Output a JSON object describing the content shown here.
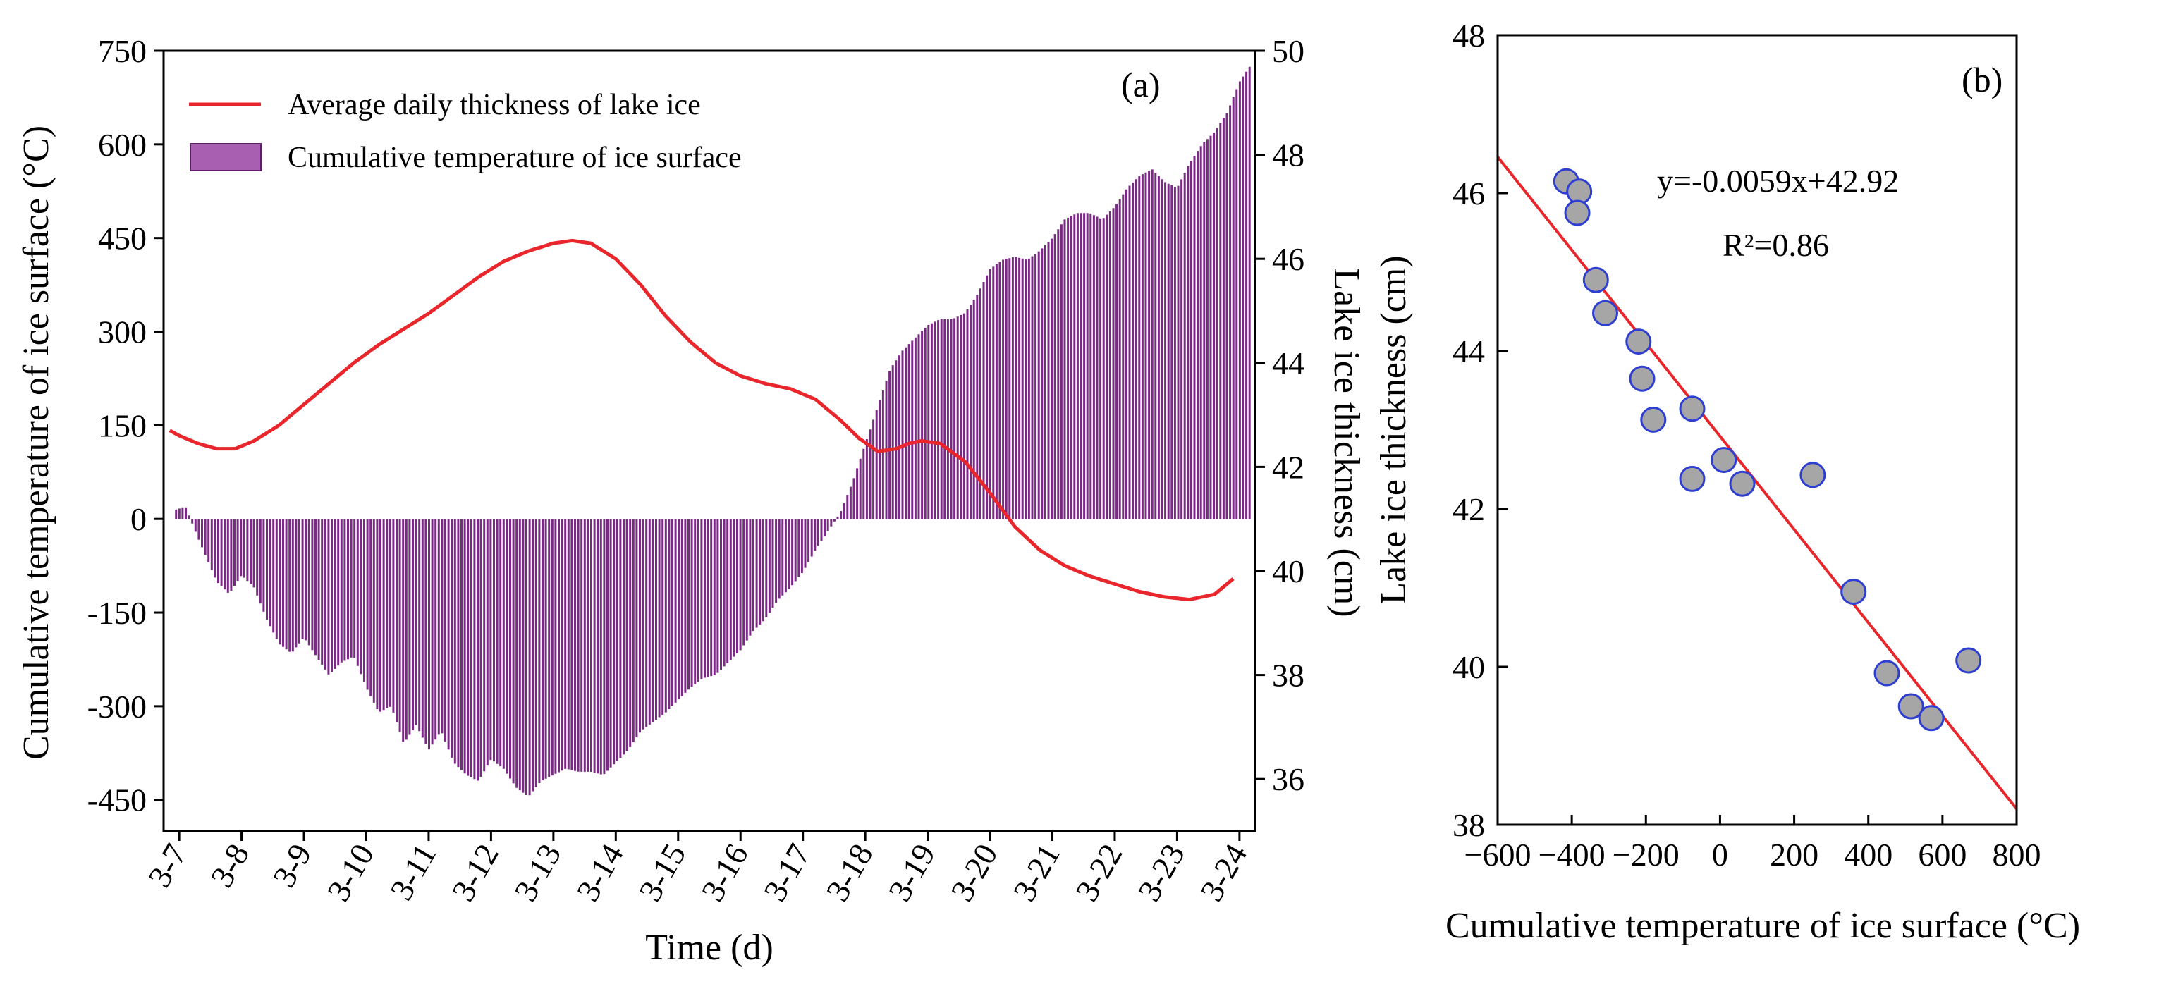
{
  "chart_data": [
    {
      "type": "bar+line",
      "panel_label": "(a)",
      "xlabel": "Time (d)",
      "ylabel_left": "Cumulative temperature of ice surface (°C)",
      "ylabel_right": "Lake ice thickness (cm)",
      "x_tick_labels": [
        "3-7",
        "3-8",
        "3-9",
        "3-10",
        "3-11",
        "3-12",
        "3-13",
        "3-14",
        "3-15",
        "3-16",
        "3-17",
        "3-18",
        "3-19",
        "3-20",
        "3-21",
        "3-22",
        "3-23",
        "3-24"
      ],
      "xlim": [
        6.75,
        24.25
      ],
      "ylim_left": [
        -500,
        750
      ],
      "yticks_left": [
        -450,
        -300,
        -150,
        0,
        150,
        300,
        450,
        600,
        750
      ],
      "ylim_right": [
        35,
        50
      ],
      "yticks_right": [
        36,
        38,
        40,
        42,
        44,
        46,
        48,
        50
      ],
      "legend": {
        "position": "top-left",
        "line_label": "Average daily thickness of lake ice",
        "bar_label": "Cumulative temperature of ice surface"
      },
      "colors": {
        "line": "#e8262b",
        "bar": "#7a2a85",
        "legend_bar": "#a85fb2"
      },
      "series_line": {
        "name": "Average daily thickness of lake ice",
        "x": [
          6.85,
          7.0,
          7.3,
          7.6,
          7.9,
          8.2,
          8.6,
          9.0,
          9.4,
          9.8,
          10.2,
          10.6,
          11.0,
          11.4,
          11.8,
          12.2,
          12.6,
          13.0,
          13.3,
          13.6,
          14.0,
          14.4,
          14.8,
          15.2,
          15.6,
          16.0,
          16.4,
          16.8,
          17.2,
          17.6,
          17.9,
          18.2,
          18.5,
          18.7,
          18.9,
          19.2,
          19.6,
          20.0,
          20.4,
          20.8,
          21.2,
          21.6,
          22.0,
          22.4,
          22.8,
          23.2,
          23.6,
          23.9
        ],
        "values": [
          42.7,
          42.6,
          42.45,
          42.35,
          42.35,
          42.5,
          42.8,
          43.2,
          43.6,
          44.0,
          44.35,
          44.65,
          44.95,
          45.3,
          45.65,
          45.95,
          46.15,
          46.3,
          46.35,
          46.3,
          46.0,
          45.5,
          44.9,
          44.4,
          44.0,
          43.75,
          43.6,
          43.5,
          43.3,
          42.9,
          42.55,
          42.3,
          42.35,
          42.45,
          42.5,
          42.45,
          42.1,
          41.5,
          40.85,
          40.4,
          40.1,
          39.9,
          39.75,
          39.6,
          39.5,
          39.45,
          39.55,
          39.85
        ]
      },
      "series_bar": {
        "name": "Cumulative temperature of ice surface",
        "anchors_x": [
          6.95,
          7.1,
          7.3,
          7.6,
          7.8,
          8.0,
          8.2,
          8.4,
          8.6,
          8.8,
          9.0,
          9.2,
          9.4,
          9.6,
          9.8,
          10.0,
          10.2,
          10.4,
          10.6,
          10.8,
          11.0,
          11.2,
          11.4,
          11.6,
          11.8,
          12.0,
          12.2,
          12.4,
          12.6,
          12.8,
          13.0,
          13.2,
          13.4,
          13.6,
          13.8,
          14.0,
          14.2,
          14.4,
          14.6,
          14.8,
          15.0,
          15.2,
          15.4,
          15.6,
          15.8,
          16.0,
          16.2,
          16.4,
          16.6,
          16.8,
          17.0,
          17.2,
          17.4,
          17.6,
          17.8,
          18.0,
          18.2,
          18.4,
          18.6,
          18.8,
          19.0,
          19.2,
          19.4,
          19.6,
          19.8,
          20.0,
          20.2,
          20.4,
          20.6,
          20.8,
          21.0,
          21.2,
          21.4,
          21.6,
          21.8,
          22.0,
          22.2,
          22.4,
          22.6,
          22.8,
          23.0,
          23.2,
          23.4,
          23.6,
          23.8,
          24.0,
          24.2
        ],
        "anchors_y": [
          15,
          20,
          -30,
          -100,
          -120,
          -90,
          -110,
          -160,
          -200,
          -215,
          -190,
          -220,
          -250,
          -230,
          -220,
          -270,
          -310,
          -300,
          -360,
          -330,
          -370,
          -340,
          -390,
          -410,
          -420,
          -385,
          -400,
          -430,
          -445,
          -420,
          -410,
          -400,
          -405,
          -405,
          -410,
          -390,
          -370,
          -340,
          -325,
          -310,
          -290,
          -270,
          -255,
          -250,
          -230,
          -210,
          -180,
          -160,
          -130,
          -110,
          -85,
          -50,
          -20,
          10,
          60,
          120,
          180,
          240,
          270,
          290,
          310,
          320,
          320,
          330,
          360,
          400,
          415,
          420,
          415,
          430,
          450,
          480,
          490,
          490,
          480,
          500,
          530,
          550,
          560,
          540,
          530,
          570,
          600,
          620,
          650,
          700,
          730
        ]
      }
    },
    {
      "type": "scatter",
      "panel_label": "(b)",
      "xlabel": "Cumulative temperature of ice surface (°C)",
      "ylabel": "Lake ice thickness (cm)",
      "xlim": [
        -600,
        800
      ],
      "xticks": [
        -600,
        -400,
        -200,
        0,
        200,
        400,
        600,
        800
      ],
      "xtick_labels": [
        "−600",
        "−400",
        "−200",
        "0",
        "200",
        "400",
        "600",
        "800"
      ],
      "ylim": [
        38,
        48
      ],
      "yticks": [
        38,
        40,
        42,
        44,
        46,
        48
      ],
      "equation": "y=-0.0059x+42.92",
      "r_squared": "R²=0.86",
      "fit": {
        "slope": -0.0059,
        "intercept": 42.92,
        "x_range": [
          -600,
          800
        ]
      },
      "colors": {
        "point_fill": "#a6a6a6",
        "point_edge": "#2e3ed1",
        "fit": "#e8262b"
      },
      "points": [
        {
          "x": -415,
          "y": 46.15
        },
        {
          "x": -380,
          "y": 46.02
        },
        {
          "x": -385,
          "y": 45.75
        },
        {
          "x": -335,
          "y": 44.9
        },
        {
          "x": -310,
          "y": 44.48
        },
        {
          "x": -220,
          "y": 44.12
        },
        {
          "x": -210,
          "y": 43.65
        },
        {
          "x": -180,
          "y": 43.13
        },
        {
          "x": -75,
          "y": 43.27
        },
        {
          "x": -75,
          "y": 42.38
        },
        {
          "x": 10,
          "y": 42.62
        },
        {
          "x": 60,
          "y": 42.32
        },
        {
          "x": 250,
          "y": 42.43
        },
        {
          "x": 360,
          "y": 40.95
        },
        {
          "x": 450,
          "y": 39.92
        },
        {
          "x": 515,
          "y": 39.5
        },
        {
          "x": 570,
          "y": 39.35
        },
        {
          "x": 670,
          "y": 40.08
        }
      ]
    }
  ]
}
